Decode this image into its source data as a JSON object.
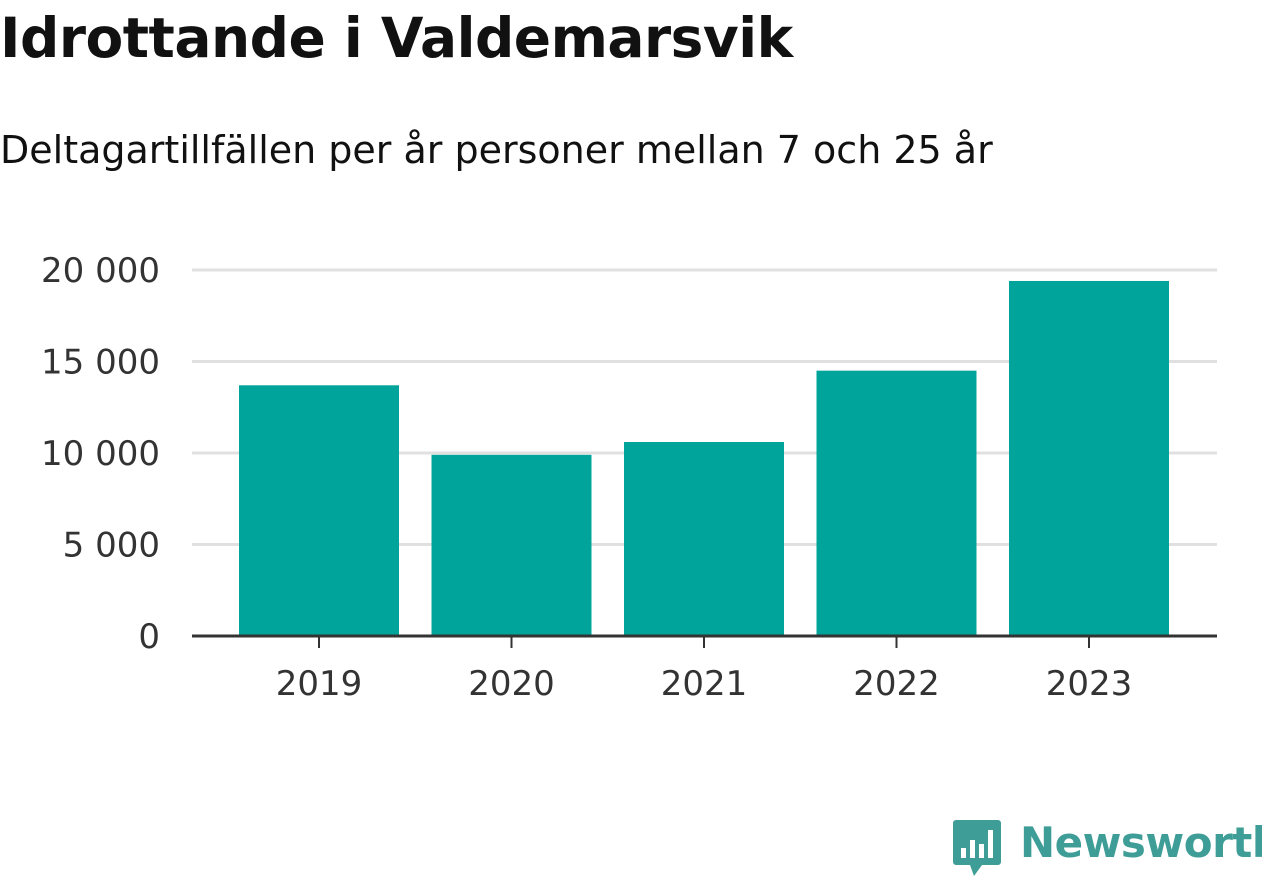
{
  "chart_data": {
    "type": "bar",
    "title": "Idrottande i Valdemarsvik",
    "subtitle": "Deltagartillfällen per år personer mellan 7 och 25 år",
    "categories": [
      "2019",
      "2020",
      "2021",
      "2022",
      "2023"
    ],
    "values": [
      13700,
      9900,
      10600,
      14500,
      19400
    ],
    "ylim": [
      0,
      20000
    ],
    "yticks": [
      0,
      5000,
      10000,
      15000,
      20000
    ],
    "ytick_labels": [
      "0",
      "5 000",
      "10 000",
      "15 000",
      "20 000"
    ],
    "xlabel": "",
    "ylabel": "",
    "grid": true,
    "legend": "none",
    "bar_color": "#00a49a",
    "grid_color": "#e0e0e0",
    "axis_color": "#333333"
  },
  "brand": {
    "name": "Newsworthy",
    "icon": "newsworthy-logo-icon",
    "color": "#3f9d97"
  }
}
